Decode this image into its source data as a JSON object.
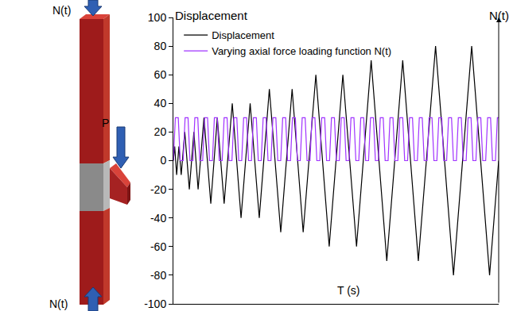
{
  "chart_data": {
    "type": "line",
    "y_label": "Displacement",
    "x_label": "T (s)",
    "y2_label": "N(t)",
    "xlim": [
      0,
      100
    ],
    "ylim": [
      -100,
      100
    ],
    "yticks": [
      -100,
      -80,
      -60,
      -40,
      -20,
      0,
      20,
      40,
      60,
      80,
      100
    ],
    "grid": false,
    "legend": "top left",
    "tick_labels": "y",
    "series": [
      {
        "name": "Displacement",
        "color": "#000000",
        "x": [
          0,
          0.4,
          1,
          1.7,
          2.4,
          3.5,
          4.9,
          6.3,
          7.6,
          9.4,
          11.5,
          13.5,
          15.6,
          18.1,
          20.8,
          23.6,
          26.4,
          29.5,
          33,
          36.5,
          39.9,
          43.8,
          47.9,
          52.1,
          56.3,
          60.8,
          65.6,
          70.5,
          75.3,
          80.6,
          86.1,
          91.7,
          97.2,
          100
        ],
        "values": [
          0,
          10,
          -10,
          10,
          -10,
          20,
          -20,
          20,
          -20,
          30,
          -30,
          30,
          -30,
          40,
          -40,
          40,
          -40,
          50,
          -50,
          50,
          -50,
          60,
          -60,
          60,
          -60,
          70,
          -70,
          70,
          -70,
          80,
          -80,
          80,
          -80,
          0
        ]
      },
      {
        "name": "Varying axial force loading function N(t)",
        "color": "#a033ff",
        "x": [
          0,
          0.6,
          1.5,
          2.1,
          3,
          3.6,
          4.5,
          5.1,
          6,
          6.6,
          7.5,
          8.1,
          9,
          9.6,
          10.5,
          11.1,
          12,
          12.6,
          13.5,
          14.1,
          15,
          15.6,
          16.5,
          17.1,
          18,
          18.6,
          19.5,
          20.1,
          21,
          21.6,
          22.5,
          23.1,
          24,
          24.6,
          25.5,
          26.1,
          27,
          27.6,
          28.5,
          29.1,
          30,
          30.6,
          31.5,
          32.1,
          33,
          33.6,
          34.5,
          35.1,
          36,
          36.6,
          37.5,
          38.1,
          39,
          39.6,
          40.5,
          41.1,
          42,
          42.6,
          43.5,
          44.1,
          45,
          45.6,
          46.5,
          47.1,
          48,
          48.6,
          49.5,
          50.1,
          51,
          51.6,
          52.5,
          53.1,
          54,
          54.6,
          55.5,
          56.1,
          57,
          57.6,
          58.5,
          59.1,
          60,
          60.6,
          61.5,
          62.1,
          63,
          63.6,
          64.5,
          65.1,
          66,
          66.6,
          67.5,
          68.1,
          69,
          69.6,
          70.5,
          71.1,
          72,
          72.6,
          73.5,
          74.1,
          75,
          75.6,
          76.5,
          77.1,
          78,
          78.6,
          79.5,
          80.1,
          81,
          81.6,
          82.5,
          83.1,
          84,
          84.6,
          85.5,
          86.1,
          87,
          87.6,
          88.5,
          89.1,
          90,
          90.6,
          91.5,
          92.1,
          93,
          93.6,
          94.5,
          95.1,
          96,
          96.6,
          97.5,
          98.1,
          99,
          99.6,
          100
        ],
        "values": [
          0,
          30,
          30,
          0,
          0,
          30,
          30,
          0,
          0,
          30,
          30,
          0,
          0,
          30,
          30,
          0,
          0,
          30,
          30,
          0,
          0,
          30,
          30,
          0,
          0,
          30,
          30,
          0,
          0,
          30,
          30,
          0,
          0,
          30,
          30,
          0,
          0,
          30,
          30,
          0,
          0,
          30,
          30,
          0,
          0,
          30,
          30,
          0,
          0,
          30,
          30,
          0,
          0,
          30,
          30,
          0,
          0,
          30,
          30,
          0,
          0,
          30,
          30,
          0,
          0,
          30,
          30,
          0,
          0,
          30,
          30,
          0,
          0,
          30,
          30,
          0,
          0,
          30,
          30,
          0,
          0,
          30,
          30,
          0,
          0,
          30,
          30,
          0,
          0,
          30,
          30,
          0,
          0,
          30,
          30,
          0,
          0,
          30,
          30,
          0,
          0,
          30,
          30,
          0,
          0,
          30,
          30,
          0,
          0,
          30,
          30,
          0,
          0,
          30,
          30,
          0,
          0,
          30,
          30,
          0,
          0,
          30,
          30,
          0,
          0,
          30,
          30,
          0,
          0,
          30,
          30,
          0,
          0,
          30,
          30
        ]
      }
    ]
  },
  "illustration": {
    "top_force": "N(t)",
    "bottom_force": "N(t)",
    "beam_load": "P"
  }
}
